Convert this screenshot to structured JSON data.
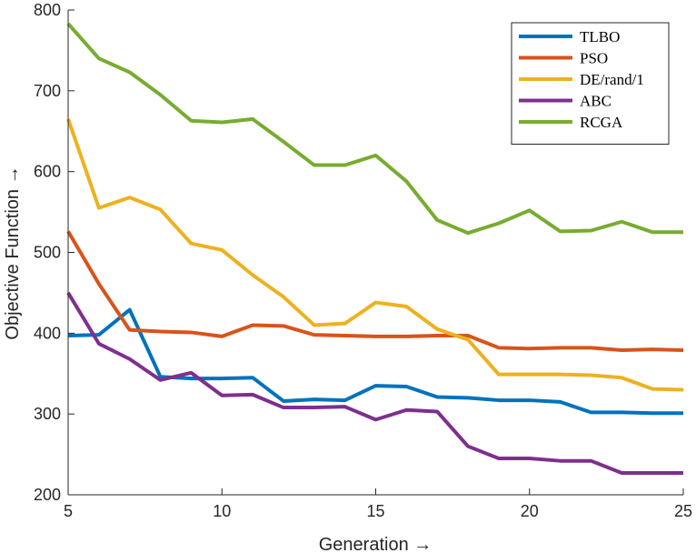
{
  "chart_data": {
    "type": "line",
    "title": "",
    "xlabel": "Generation →",
    "ylabel": "Objective Function →",
    "xlim": [
      5,
      25
    ],
    "ylim": [
      200,
      800
    ],
    "xticks": [
      5,
      10,
      15,
      20,
      25
    ],
    "yticks": [
      200,
      300,
      400,
      500,
      600,
      700,
      800
    ],
    "grid": false,
    "legend_position": "top-right",
    "x": [
      5,
      6,
      7,
      8,
      9,
      10,
      11,
      12,
      13,
      14,
      15,
      16,
      17,
      18,
      19,
      20,
      21,
      22,
      23,
      24,
      25
    ],
    "series": [
      {
        "name": "TLBO",
        "color": "#0072BD",
        "values": [
          397,
          398,
          429,
          346,
          344,
          344,
          345,
          316,
          318,
          317,
          335,
          334,
          321,
          320,
          317,
          317,
          315,
          302,
          302,
          301,
          301
        ]
      },
      {
        "name": "PSO",
        "color": "#D95319",
        "values": [
          526,
          461,
          404,
          402,
          401,
          396,
          410,
          409,
          398,
          397,
          396,
          396,
          397,
          397,
          382,
          381,
          382,
          382,
          379,
          380,
          379
        ]
      },
      {
        "name": "DE/rand/1",
        "color": "#EDB120",
        "values": [
          665,
          555,
          568,
          553,
          511,
          503,
          472,
          445,
          410,
          412,
          438,
          433,
          405,
          392,
          349,
          349,
          349,
          348,
          345,
          331,
          330
        ]
      },
      {
        "name": "ABC",
        "color": "#7E2F8E",
        "values": [
          450,
          387,
          368,
          342,
          351,
          323,
          324,
          308,
          308,
          309,
          293,
          305,
          303,
          260,
          245,
          245,
          242,
          242,
          227,
          227,
          227
        ]
      },
      {
        "name": "RCGA",
        "color": "#77AC30",
        "values": [
          783,
          740,
          723,
          695,
          663,
          661,
          665,
          637,
          608,
          608,
          620,
          588,
          540,
          524,
          536,
          552,
          526,
          527,
          538,
          525,
          525
        ]
      }
    ]
  }
}
